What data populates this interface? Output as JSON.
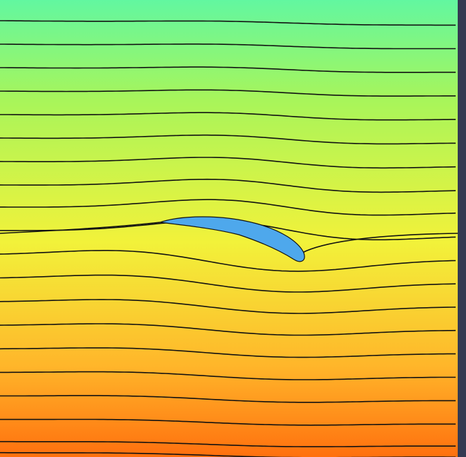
{
  "figure": {
    "colors": {
      "field_top": "#62f7a0",
      "field_upper": "#a8f55a",
      "field_middle": "#f2f23a",
      "field_lower": "#ffb62a",
      "field_bottom": "#ff700e",
      "airfoil_fill": "#4ea8ec",
      "streamline": "#111111",
      "right_border": "#343a52"
    },
    "streamline_count": 20,
    "airfoil_visible": true
  }
}
